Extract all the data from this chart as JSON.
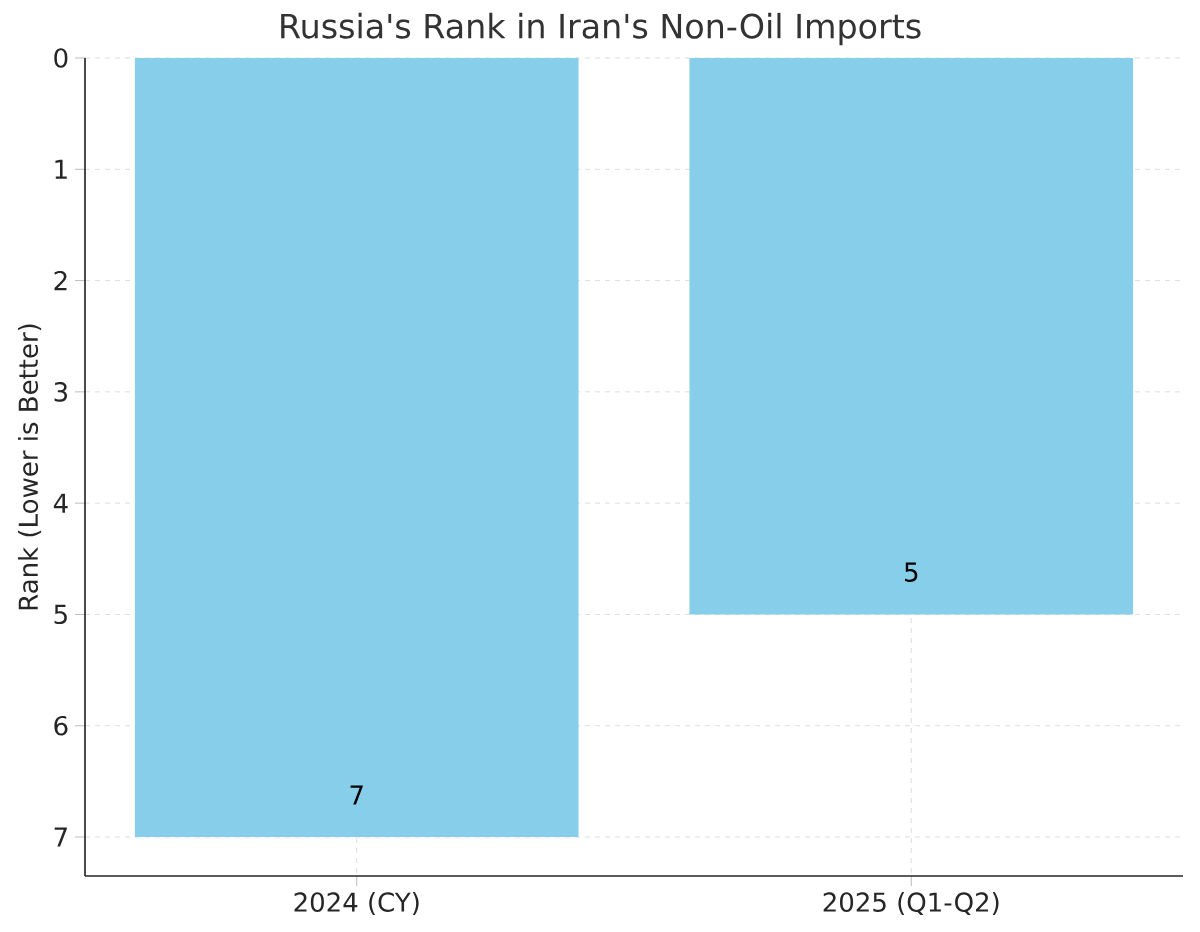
{
  "chart_data": {
    "type": "bar",
    "title": "Russia's Rank in Iran's Non-Oil Imports",
    "ylabel": "Rank (Lower is Better)",
    "categories": [
      "2024 (CY)",
      "2025 (Q1-Q2)"
    ],
    "values": [
      7,
      5
    ],
    "color": "#87ceeb",
    "ylim": [
      7.35,
      0
    ],
    "yticks": [
      0,
      1,
      2,
      3,
      4,
      5,
      6,
      7
    ],
    "grid": true,
    "data_labels": true
  }
}
